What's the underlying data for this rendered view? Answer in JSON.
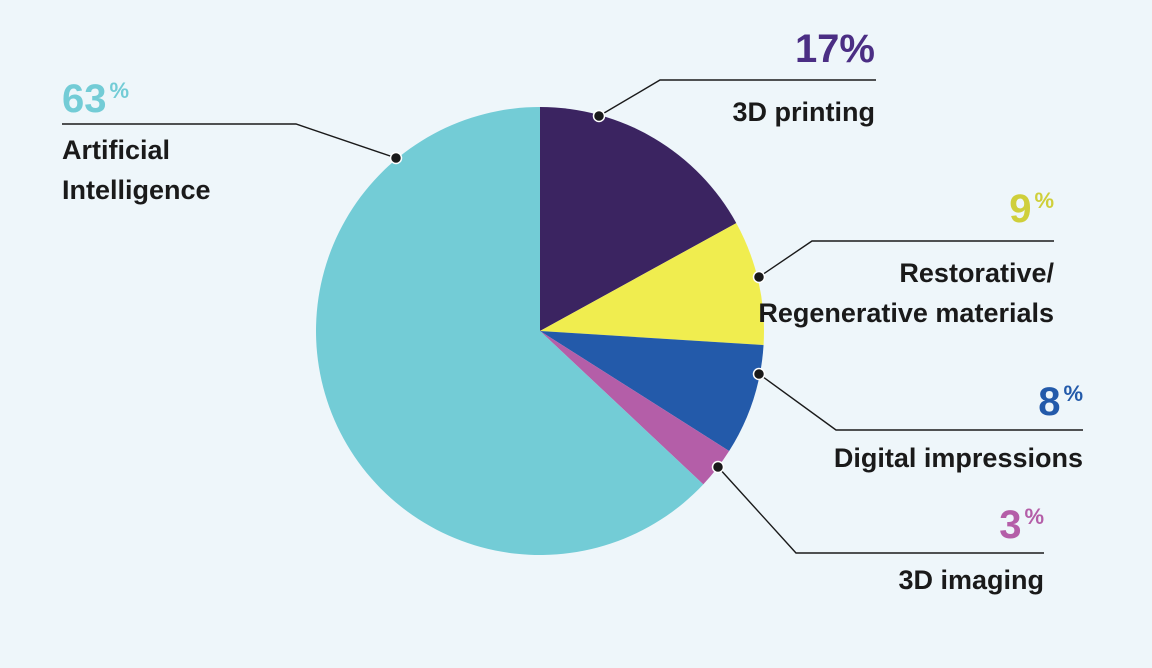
{
  "chart_data": {
    "type": "pie",
    "start_angle_deg": 0,
    "direction": "clockwise",
    "slices": [
      {
        "label_lines": [
          "3D printing"
        ],
        "value": 17,
        "value_text": "17%",
        "color": "#3b2461"
      },
      {
        "label_lines": [
          "Restorative/",
          "Regenerative materials"
        ],
        "value": 9,
        "value_text": "9",
        "color": "#f0ed4f"
      },
      {
        "label_lines": [
          "Digital impressions"
        ],
        "value": 8,
        "value_text": "8",
        "color": "#235aaa"
      },
      {
        "label_lines": [
          "3D imaging"
        ],
        "value": 3,
        "value_text": "3",
        "color": "#b45ea8"
      },
      {
        "label_lines": [
          "Artificial",
          "Intelligence"
        ],
        "value": 63,
        "value_text": "63",
        "color": "#73ccd6"
      }
    ],
    "percent_symbol": "%",
    "value_colors": [
      "#4b2e84",
      "#cfcf3a",
      "#235aaa",
      "#b45ea8",
      "#73ccd6"
    ]
  }
}
